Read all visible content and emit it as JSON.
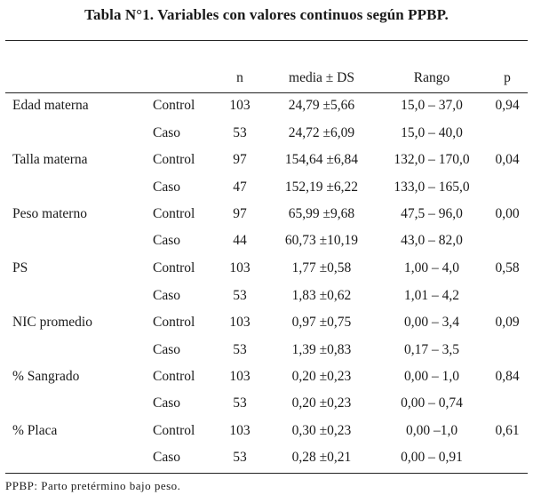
{
  "title": "Tabla N°1. Variables con valores continuos según PPBP.",
  "headers": {
    "n": "n",
    "mean": "media ± DS",
    "range": "Rango",
    "p": "p"
  },
  "variables": [
    {
      "name": "Edad materna",
      "p": "0,94",
      "rows": [
        {
          "group": "Control",
          "n": "103",
          "mean": "24,79 ±5,66",
          "range": "15,0 – 37,0"
        },
        {
          "group": "Caso",
          "n": "53",
          "mean": "24,72 ±6,09",
          "range": "15,0 – 40,0"
        }
      ]
    },
    {
      "name": "Talla materna",
      "p": "0,04",
      "rows": [
        {
          "group": "Control",
          "n": "97",
          "mean": "154,64 ±6,84",
          "range": "132,0 – 170,0"
        },
        {
          "group": "Caso",
          "n": "47",
          "mean": "152,19 ±6,22",
          "range": "133,0 – 165,0"
        }
      ]
    },
    {
      "name": "Peso materno",
      "p": "0,00",
      "rows": [
        {
          "group": "Control",
          "n": "97",
          "mean": "65,99 ±9,68",
          "range": "47,5 – 96,0"
        },
        {
          "group": "Caso",
          "n": "44",
          "mean": "60,73 ±10,19",
          "range": "43,0 – 82,0"
        }
      ]
    },
    {
      "name": "PS",
      "p": "0,58",
      "rows": [
        {
          "group": "Control",
          "n": "103",
          "mean": "1,77 ±0,58",
          "range": "1,00 – 4,0"
        },
        {
          "group": "Caso",
          "n": "53",
          "mean": "1,83 ±0,62",
          "range": "1,01 – 4,2"
        }
      ]
    },
    {
      "name": "NIC promedio",
      "p": "0,09",
      "rows": [
        {
          "group": "Control",
          "n": "103",
          "mean": "0,97 ±0,75",
          "range": "0,00 – 3,4"
        },
        {
          "group": "Caso",
          "n": "53",
          "mean": "1,39 ±0,83",
          "range": "0,17 – 3,5"
        }
      ]
    },
    {
      "name": "% Sangrado",
      "p": "0,84",
      "rows": [
        {
          "group": "Control",
          "n": "103",
          "mean": "0,20 ±0,23",
          "range": "0,00 – 1,0"
        },
        {
          "group": "Caso",
          "n": "53",
          "mean": "0,20 ±0,23",
          "range": "0,00 – 0,74"
        }
      ]
    },
    {
      "name": "% Placa",
      "p": "0,61",
      "rows": [
        {
          "group": "Control",
          "n": "103",
          "mean": "0,30 ±0,23",
          "range": "0,00 –1,0"
        },
        {
          "group": "Caso",
          "n": "53",
          "mean": "0,28 ±0,21",
          "range": "0,00 – 0,91"
        }
      ]
    }
  ],
  "footnote": "PPBP: Parto pretérmino bajo peso."
}
